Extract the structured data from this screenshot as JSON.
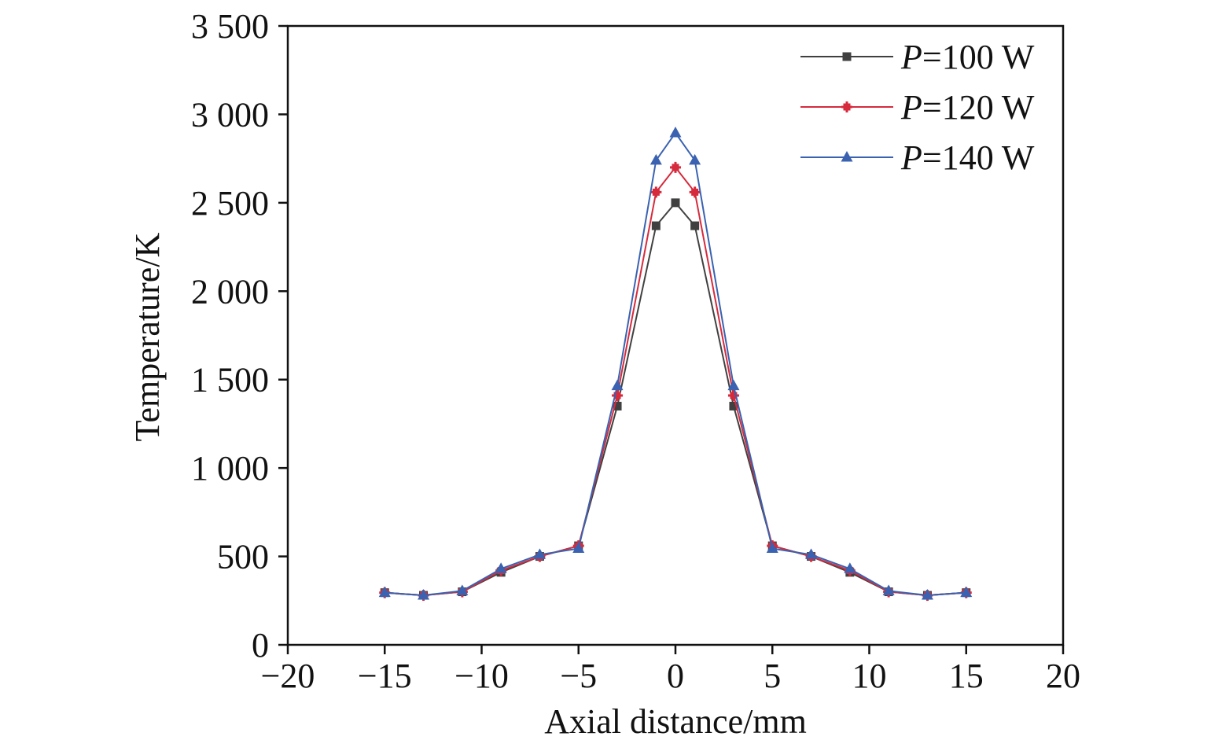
{
  "chart_data": {
    "type": "line",
    "title": "",
    "xlabel": "Axial distance/mm",
    "ylabel": "Temperature/K",
    "xlim": [
      -20,
      20
    ],
    "ylim": [
      0,
      3500
    ],
    "xticks": [
      -20,
      -15,
      -10,
      -5,
      0,
      5,
      10,
      15,
      20
    ],
    "xtick_labels": [
      "−20",
      "−15",
      "−10",
      "−5",
      "0",
      "5",
      "10",
      "15",
      "20"
    ],
    "yticks": [
      0,
      500,
      1000,
      1500,
      2000,
      2500,
      3000,
      3500
    ],
    "ytick_labels": [
      "0",
      "500",
      "1 000",
      "1 500",
      "2 000",
      "2 500",
      "3 000",
      "3 500"
    ],
    "grid": false,
    "legend_position": "top-right",
    "x": [
      -15,
      -13,
      -11,
      -9,
      -7,
      -5,
      -3,
      -1,
      0,
      1,
      3,
      5,
      7,
      9,
      11,
      13,
      15
    ],
    "series": [
      {
        "name": "P=100 W",
        "name_var": "P",
        "name_rest": "=100 W",
        "color": "#404040",
        "marker": "square",
        "values": [
          295,
          280,
          300,
          410,
          500,
          560,
          1350,
          2370,
          2500,
          2370,
          1350,
          560,
          500,
          410,
          300,
          280,
          295
        ]
      },
      {
        "name": "P=120 W",
        "name_var": "P",
        "name_rest": "=120 W",
        "color": "#d62b3d",
        "marker": "plus-square",
        "values": [
          295,
          280,
          300,
          420,
          500,
          560,
          1410,
          2560,
          2700,
          2560,
          1410,
          560,
          500,
          420,
          300,
          280,
          295
        ]
      },
      {
        "name": "P=140 W",
        "name_var": "P",
        "name_rest": "=140 W",
        "color": "#3a62b0",
        "marker": "triangle",
        "values": [
          295,
          280,
          305,
          430,
          510,
          545,
          1465,
          2740,
          2895,
          2740,
          1465,
          545,
          510,
          430,
          305,
          280,
          295
        ]
      }
    ]
  }
}
